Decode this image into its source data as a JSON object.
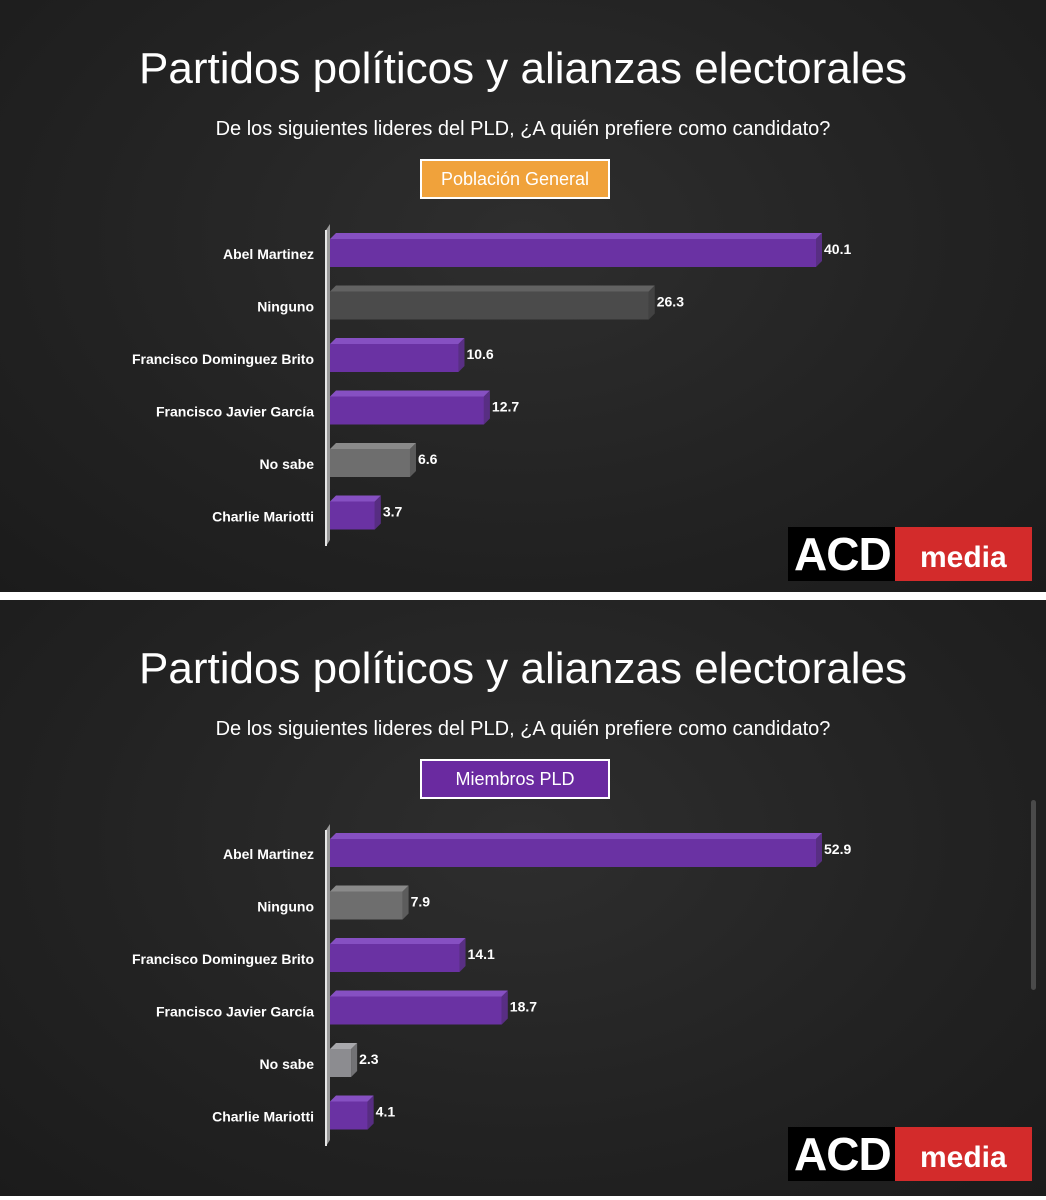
{
  "colors": {
    "purple": "#6a32a3",
    "purple_light": "#8650c2",
    "gray_dark": "#4b4b4b",
    "gray_dark_light": "#626262",
    "gray_mid": "#6e6e6e",
    "gray_mid_light": "#8a8a8a",
    "gray_light": "#8c8c90",
    "gray_light_light": "#a9a9ad",
    "badge_orange": "#f0a23b",
    "badge_purple": "#6a2aa0"
  },
  "panels": [
    {
      "title": "Partidos políticos y alianzas electorales",
      "subtitle": "De los siguientes lideres del PLD, ¿A quién prefiere como candidato?",
      "badge": {
        "label": "Población General",
        "color": "#f0a23b"
      },
      "logo": {
        "acd": "ACD",
        "media": "media"
      },
      "chart_data": {
        "type": "bar",
        "orientation": "horizontal",
        "categories": [
          "Abel Martinez",
          "Ninguno",
          "Francisco Dominguez Brito",
          "Francisco Javier García",
          "No sabe",
          "Charlie Mariotti"
        ],
        "values": [
          40.1,
          26.3,
          10.6,
          12.7,
          6.6,
          3.7
        ],
        "value_labels": [
          "40.1",
          "26.3",
          "10.6",
          "12.7",
          "6.6",
          "3.7"
        ],
        "bar_colors": [
          "purple",
          "gray_dark",
          "purple",
          "purple",
          "gray_mid",
          "purple"
        ],
        "title": "",
        "xlabel": "",
        "ylabel": "",
        "xlim": [
          0,
          40.1
        ],
        "grid": false
      }
    },
    {
      "title": "Partidos políticos y alianzas electorales",
      "subtitle": "De los siguientes lideres del PLD, ¿A quién prefiere como candidato?",
      "badge": {
        "label": "Miembros PLD",
        "color": "#6a2aa0"
      },
      "logo": {
        "acd": "ACD",
        "media": "media"
      },
      "chart_data": {
        "type": "bar",
        "orientation": "horizontal",
        "categories": [
          "Abel Martinez",
          "Ninguno",
          "Francisco Dominguez Brito",
          "Francisco Javier García",
          "No sabe",
          "Charlie Mariotti"
        ],
        "values": [
          52.9,
          7.9,
          14.1,
          18.7,
          2.3,
          4.1
        ],
        "value_labels": [
          "52.9",
          "7.9",
          "14.1",
          "18.7",
          "2.3",
          "4.1"
        ],
        "bar_colors": [
          "purple",
          "gray_mid",
          "purple",
          "purple",
          "gray_light",
          "purple"
        ],
        "title": "",
        "xlabel": "",
        "ylabel": "",
        "xlim": [
          0,
          52.9
        ],
        "grid": false
      }
    }
  ]
}
